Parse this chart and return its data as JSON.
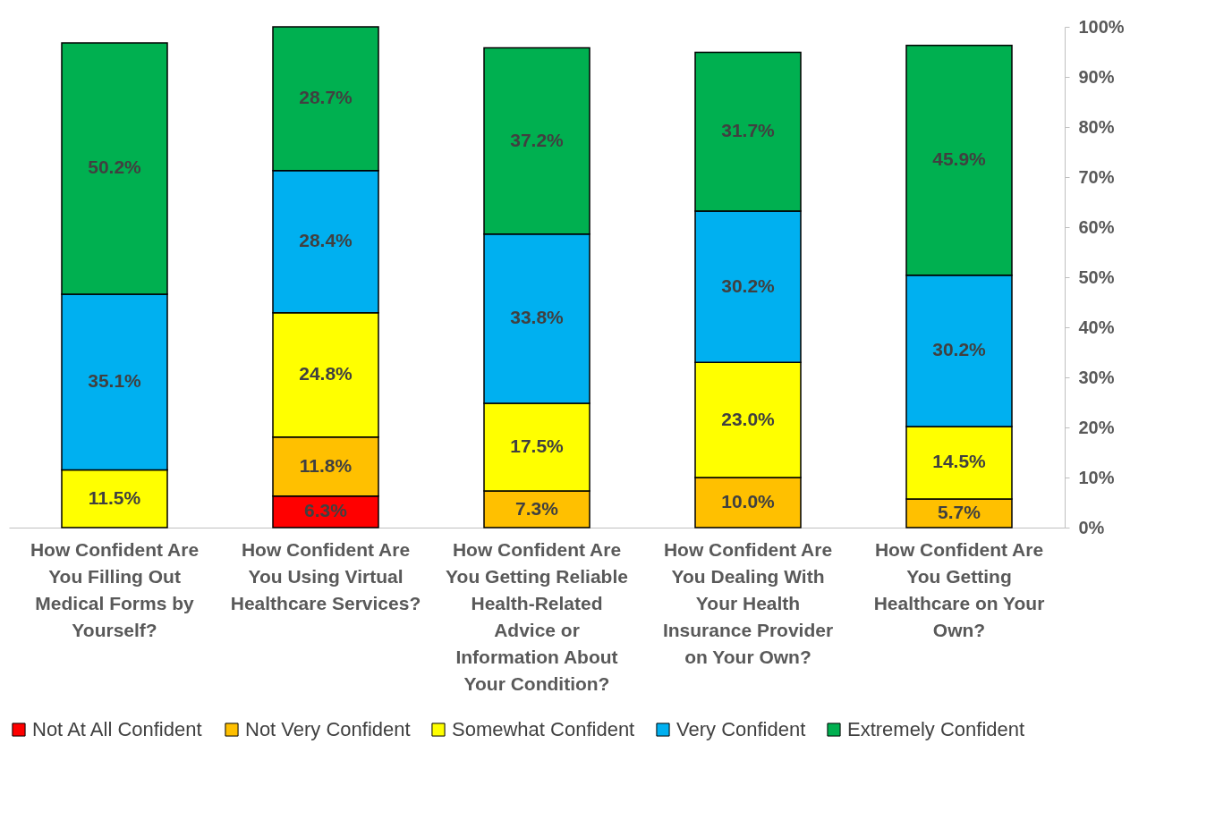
{
  "chart_data": {
    "type": "bar",
    "stacked": true,
    "categories": [
      "How Confident Are You Filling Out Medical Forms by Yourself?",
      "How Confident Are You Using Virtual Healthcare Services?",
      "How Confident Are You Getting Reliable Health-Related Advice or Information About Your Condition?",
      "How Confident Are You Dealing With Your Health Insurance Provider on Your Own?",
      "How Confident Are You Getting Healthcare on Your Own?"
    ],
    "series": [
      {
        "name": "Not At All Confident",
        "color": "#ff0000",
        "values": [
          null,
          6.3,
          null,
          null,
          null
        ],
        "value_labels": [
          null,
          "6.3%",
          null,
          null,
          null
        ]
      },
      {
        "name": "Not Very Confident",
        "color": "#ffc000",
        "values": [
          null,
          11.8,
          7.3,
          10.0,
          5.7
        ],
        "value_labels": [
          null,
          "11.8%",
          "7.3%",
          "10.0%",
          "5.7%"
        ]
      },
      {
        "name": "Somewhat Confident",
        "color": "#ffff00",
        "values": [
          11.5,
          24.8,
          17.5,
          23.0,
          14.5
        ],
        "value_labels": [
          "11.5%",
          "24.8%",
          "17.5%",
          "23.0%",
          "14.5%"
        ]
      },
      {
        "name": "Very Confident",
        "color": "#00b0f0",
        "values": [
          35.1,
          28.4,
          33.8,
          30.2,
          30.2
        ],
        "value_labels": [
          "35.1%",
          "28.4%",
          "33.8%",
          "30.2%",
          "30.2%"
        ]
      },
      {
        "name": "Extremely Confident",
        "color": "#00b050",
        "values": [
          50.2,
          28.7,
          37.2,
          31.7,
          45.9
        ],
        "value_labels": [
          "50.2%",
          "28.7%",
          "37.2%",
          "31.7%",
          "45.9%"
        ]
      }
    ],
    "ylim": [
      0,
      100
    ],
    "yticks": [
      {
        "value": 0,
        "label": "0%"
      },
      {
        "value": 10,
        "label": "10%"
      },
      {
        "value": 20,
        "label": "20%"
      },
      {
        "value": 30,
        "label": "30%"
      },
      {
        "value": 40,
        "label": "40%"
      },
      {
        "value": 50,
        "label": "50%"
      },
      {
        "value": 60,
        "label": "60%"
      },
      {
        "value": 70,
        "label": "70%"
      },
      {
        "value": 80,
        "label": "80%"
      },
      {
        "value": 90,
        "label": "90%"
      },
      {
        "value": 100,
        "label": "100%"
      }
    ],
    "legend": "bottom",
    "grid": false
  }
}
